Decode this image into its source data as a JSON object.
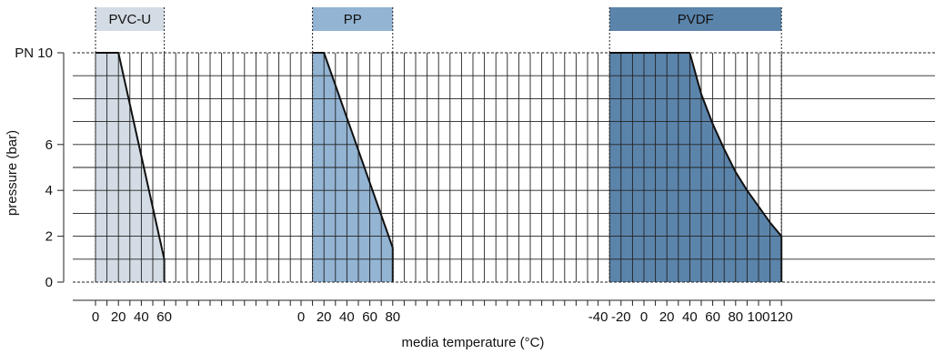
{
  "chart_data": {
    "type": "area",
    "xlabel": "media temperature (°C)",
    "ylabel": "pressure (bar)",
    "ylim": [
      0,
      10
    ],
    "y_ticks": [
      {
        "value": 0,
        "label": "0"
      },
      {
        "value": 2,
        "label": "2"
      },
      {
        "value": 4,
        "label": "4"
      },
      {
        "value": 6,
        "label": "6"
      },
      {
        "value": 10,
        "label": "PN 10"
      }
    ],
    "grid": true,
    "panels": [
      {
        "name": "PVC-U",
        "color": "#d3dce5",
        "header_color": "#d3dce5",
        "x_ticks": [
          0,
          20,
          40,
          60
        ],
        "x_ticks_labels": [
          "0",
          "20",
          "40",
          "60"
        ],
        "shade_range": [
          0,
          60
        ],
        "series": [
          {
            "x": [
              0,
              20,
              60,
              60
            ],
            "y": [
              10,
              10,
              1,
              0
            ]
          }
        ]
      },
      {
        "name": "PP",
        "color": "#93b4d3",
        "header_color": "#93b4d3",
        "x_ticks": [
          0,
          20,
          40,
          60,
          80
        ],
        "x_ticks_labels": [
          "0",
          "20",
          "40",
          "60",
          "80"
        ],
        "shade_range": [
          10,
          80
        ],
        "series": [
          {
            "x": [
              10,
              20,
              80,
              80
            ],
            "y": [
              10,
              10,
              1.5,
              0
            ]
          }
        ]
      },
      {
        "name": "PVDF",
        "color": "#5b84ab",
        "header_color": "#5b84ab",
        "x_ticks": [
          -40,
          -20,
          0,
          20,
          40,
          60,
          80,
          100,
          120
        ],
        "x_ticks_labels": [
          "-40",
          "-20",
          "0",
          "20",
          "40",
          "60",
          "80",
          "100",
          "120"
        ],
        "shade_range": [
          -30,
          120
        ],
        "series": [
          {
            "x": [
              -30,
              40,
              50,
              60,
              70,
              80,
              90,
              100,
              110,
              120,
              120
            ],
            "y": [
              10,
              10,
              8.2,
              6.9,
              5.8,
              4.8,
              4.0,
              3.3,
              2.6,
              2.0,
              0
            ]
          }
        ]
      }
    ]
  }
}
